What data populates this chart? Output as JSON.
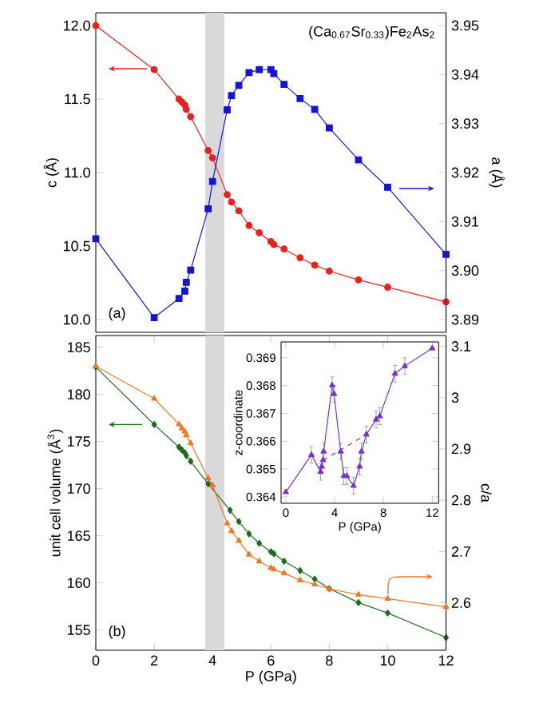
{
  "chart_data": [
    {
      "type": "line",
      "ylabel": "c (Å)",
      "annotations": [
        "(Ca$_{0.67}$Sr$_{0.33}$)Fe$_{2}$As$_{2}$",
        "(a)"
      ],
      "xlim": [
        0,
        12
      ],
      "ylim": [
        9.913,
        12.087
      ],
      "yticks": [
        {
          "value": 10,
          "label": "10.0"
        },
        10.5,
        {
          "value": 11,
          "label": "11.0"
        },
        11.5,
        {
          "value": 12,
          "label": "12.0"
        }
      ],
      "bands": [
        {
          "axis": "x",
          "from": 3.75,
          "to": 4.4,
          "color": "#d9d9d9"
        }
      ],
      "series": [
        {
          "color": "#e8201e",
          "marker": "circle",
          "x": [
            0,
            2,
            2.85,
            2.95,
            3.05,
            3.1,
            3.25,
            3.85,
            4.0,
            4.5,
            4.65,
            4.9,
            5.25,
            5.6,
            6.0,
            6.1,
            6.45,
            7.0,
            7.5,
            8.0,
            9.0,
            10.0,
            12.0
          ],
          "values": [
            12.0,
            11.7,
            11.5,
            11.48,
            11.46,
            11.43,
            11.38,
            11.15,
            11.1,
            10.85,
            10.8,
            10.74,
            10.64,
            10.59,
            10.53,
            10.51,
            10.48,
            10.42,
            10.37,
            10.33,
            10.27,
            10.22,
            10.12
          ]
        }
      ]
    },
    {
      "type": "line",
      "y2label": "a (Å)",
      "xlim": [
        0,
        12
      ],
      "y2lim": [
        3.8874,
        3.9526
      ],
      "y2ticks": [
        3.89,
        {
          "value": 3.9,
          "label": "3.90"
        },
        3.91,
        3.92,
        3.93,
        3.94,
        3.95
      ],
      "series": [
        {
          "color": "#1414d2",
          "marker": "square",
          "axis": "y2",
          "x": [
            0,
            2,
            2.85,
            3.05,
            3.1,
            3.25,
            3.85,
            4.0,
            4.5,
            4.65,
            4.9,
            5.25,
            5.6,
            6.0,
            6.1,
            6.45,
            7.0,
            7.5,
            8.0,
            9.0,
            10.0,
            12.0
          ],
          "values": [
            3.9065,
            3.8904,
            3.8943,
            3.8958,
            3.8976,
            3.9001,
            3.9126,
            3.9182,
            3.9328,
            3.9357,
            3.9378,
            3.9404,
            3.941,
            3.941,
            3.9402,
            3.938,
            3.9351,
            3.9329,
            3.9291,
            3.9226,
            3.917,
            3.9033
          ]
        }
      ]
    },
    {
      "type": "line",
      "xlabel": "P (GPa)",
      "ylabel": "unit cell volume (Å$^{3}$)",
      "y2label": "c/a",
      "annotations": [
        "(b)"
      ],
      "xlim": [
        0,
        12
      ],
      "xticks": [
        0,
        2,
        4,
        6,
        8,
        10,
        12
      ],
      "ylim": [
        152.85,
        186.24
      ],
      "yticks": [
        155,
        160,
        165,
        170,
        175,
        180,
        185
      ],
      "y2lim": [
        2.5075,
        3.121
      ],
      "y2ticks": [
        2.6,
        2.7,
        2.8,
        2.9,
        3,
        3.1
      ],
      "bands": [
        {
          "axis": "x",
          "from": 3.75,
          "to": 4.4,
          "color": "#d9d9d9"
        }
      ],
      "series": [
        {
          "color": "#1e6b1e",
          "marker": "diamond",
          "x": [
            0,
            2,
            2.85,
            2.95,
            3.05,
            3.1,
            3.25,
            3.85,
            4.6,
            4.9,
            5.25,
            5.6,
            6.0,
            6.1,
            6.45,
            7.0,
            7.5,
            8.0,
            9.0,
            10.0,
            12.0
          ],
          "values": [
            182.9,
            176.8,
            174.4,
            174.1,
            173.8,
            173.5,
            172.9,
            170.5,
            167.7,
            166.5,
            165.2,
            164.2,
            163.3,
            163.1,
            162.3,
            161.3,
            160.4,
            159.4,
            157.9,
            156.8,
            154.2
          ]
        },
        {
          "color": "#f07820",
          "marker": "triangle",
          "axis": "y2",
          "x": [
            0,
            2,
            2.85,
            2.95,
            3.05,
            3.1,
            3.25,
            3.85,
            4.0,
            4.5,
            4.65,
            4.9,
            5.25,
            5.6,
            6.0,
            6.1,
            6.45,
            7.0,
            7.5,
            8.0,
            9.0,
            10.0,
            12.0
          ],
          "values": [
            3.061,
            2.998,
            2.948,
            2.94,
            2.934,
            2.927,
            2.911,
            2.843,
            2.829,
            2.755,
            2.74,
            2.721,
            2.694,
            2.681,
            2.668,
            2.665,
            2.658,
            2.644,
            2.636,
            2.627,
            2.616,
            2.608,
            2.592
          ]
        }
      ]
    },
    {
      "type": "line",
      "xlabel": "P (GPa)",
      "ylabel": "z-coordinate",
      "xlim": [
        -0.39,
        12.53
      ],
      "xticks": [
        0,
        4,
        8,
        12
      ],
      "ylim": [
        0.36377,
        0.36957
      ],
      "yticks": [
        0.364,
        0.365,
        0.366,
        0.367,
        0.368,
        0.369
      ],
      "series": [
        {
          "color": "#7b2fd0",
          "marker": "triangle",
          "x": [
            0,
            2.1,
            2.85,
            2.95,
            3.05,
            3.1,
            3.8,
            3.95,
            4.5,
            4.75,
            5.0,
            5.55,
            6.05,
            6.2,
            6.6,
            7.4,
            7.7,
            8.95,
            9.75,
            12.0
          ],
          "values": [
            0.36417,
            0.36551,
            0.3649,
            0.36509,
            0.36532,
            0.36563,
            0.36801,
            0.3677,
            0.36563,
            0.36475,
            0.36475,
            0.3644,
            0.36509,
            0.36563,
            0.36624,
            0.36678,
            0.3669,
            0.36843,
            0.3687,
            0.36934
          ],
          "errors": [
            null,
            0.0003,
            0.0003,
            null,
            null,
            0.0003,
            0.0003,
            0.0003,
            0.0003,
            0.0003,
            0.0003,
            0.0003,
            0.0003,
            0.0003,
            0.0003,
            0.0003,
            0.0003,
            0.0003,
            0.0003,
            null
          ]
        },
        {
          "type": "line",
          "color": "#7b2fd0",
          "marker": "none",
          "line_style": "dashed",
          "x": [
            3.05,
            6.6
          ],
          "values": [
            0.36532,
            0.36624
          ]
        }
      ]
    }
  ]
}
